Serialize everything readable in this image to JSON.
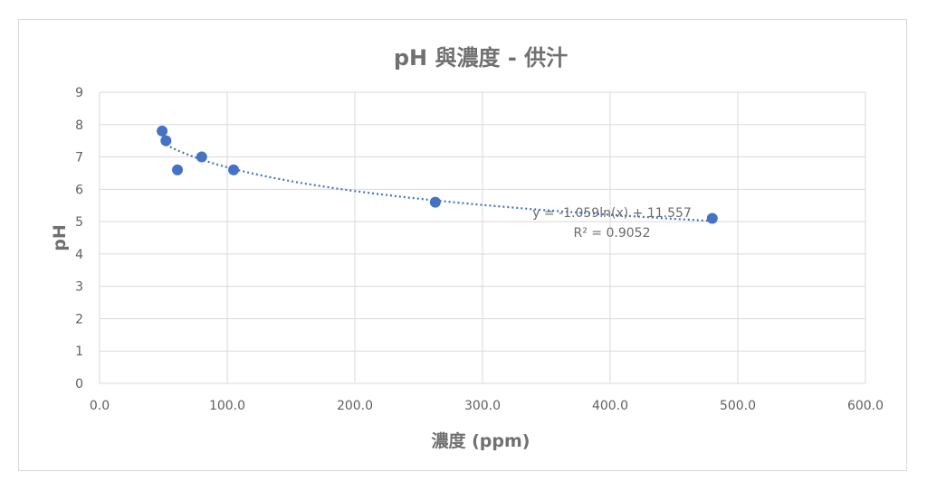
{
  "chart_data": {
    "type": "scatter",
    "title": "pH 與濃度 - 供汁",
    "xlabel": "濃度 (ppm)",
    "ylabel": "pH",
    "xlim": [
      0,
      600
    ],
    "ylim": [
      0,
      9
    ],
    "xticks": [
      0,
      100,
      200,
      300,
      400,
      500,
      600
    ],
    "xtick_labels": [
      "0.0",
      "100.0",
      "200.0",
      "300.0",
      "400.0",
      "500.0",
      "600.0"
    ],
    "yticks": [
      0,
      1,
      2,
      3,
      4,
      5,
      6,
      7,
      8,
      9
    ],
    "ytick_labels": [
      "0",
      "1",
      "2",
      "3",
      "4",
      "5",
      "6",
      "7",
      "8",
      "9"
    ],
    "grid": true,
    "series": [
      {
        "color": "#4472c4",
        "points": [
          {
            "x": 49,
            "y": 7.8
          },
          {
            "x": 52,
            "y": 7.5
          },
          {
            "x": 61,
            "y": 6.6
          },
          {
            "x": 80,
            "y": 7.0
          },
          {
            "x": 105,
            "y": 6.6
          },
          {
            "x": 263,
            "y": 5.6
          },
          {
            "x": 480,
            "y": 5.1
          }
        ]
      }
    ],
    "trendline": {
      "type": "logarithmic",
      "a": -1.059,
      "b": 11.557,
      "x_from": 52,
      "x_to": 480,
      "style": "dotted",
      "equation_label": "y = -1.059ln(x) + 11.557",
      "r2_label": "R² = 0.9052"
    }
  }
}
